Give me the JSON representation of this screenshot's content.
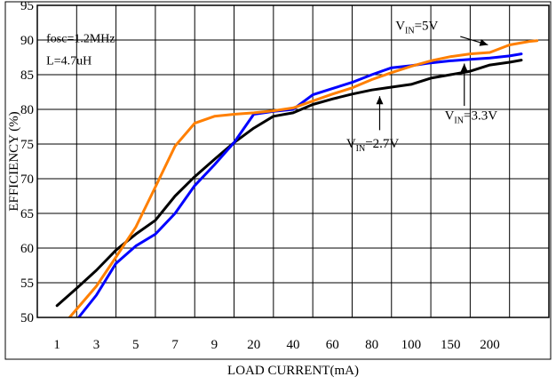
{
  "chart_data": {
    "type": "line",
    "title": "",
    "xlabel": "LOAD CURRENT(mA)",
    "ylabel": "EFFICIENCY (%)",
    "x_ticks": [
      "1",
      "3",
      "5",
      "7",
      "9",
      "20",
      "40",
      "60",
      "80",
      "100",
      "150",
      "200"
    ],
    "ylim": [
      50,
      95
    ],
    "y_ticks": [
      50,
      55,
      60,
      65,
      70,
      75,
      80,
      85,
      90,
      95
    ],
    "grid": true,
    "annotations": {
      "conditions": [
        "fosc=1.2MHz",
        "L=4.7uH"
      ],
      "vin_5v": {
        "main": "V",
        "sub": "IN",
        "tail": "=5V"
      },
      "vin_3v3": {
        "main": "V",
        "sub": "IN",
        "tail": "=3.3V"
      },
      "vin_2v7": {
        "main": "V",
        "sub": "IN",
        "tail": "=2.7V"
      }
    },
    "series": [
      {
        "name": "VIN=2.7V",
        "color": "#000000",
        "points": [
          [
            0,
            51.7
          ],
          [
            0.5,
            54.2
          ],
          [
            1,
            56.8
          ],
          [
            1.5,
            59.7
          ],
          [
            2,
            62
          ],
          [
            2.5,
            64
          ],
          [
            3,
            67.5
          ],
          [
            3.5,
            70.3
          ],
          [
            4,
            72.8
          ],
          [
            4.5,
            75.2
          ],
          [
            5,
            77.3
          ],
          [
            5.5,
            79
          ],
          [
            6,
            79.5
          ],
          [
            6.5,
            80.7
          ],
          [
            7,
            81.5
          ],
          [
            7.5,
            82.2
          ],
          [
            8,
            82.8
          ],
          [
            8.5,
            83.2
          ],
          [
            9,
            83.6
          ],
          [
            9.5,
            84.5
          ],
          [
            10,
            85
          ],
          [
            10.5,
            85.5
          ],
          [
            11,
            86.4
          ],
          [
            11.5,
            86.8
          ],
          [
            11.8,
            87.1
          ]
        ]
      },
      {
        "name": "VIN=3.3V",
        "color": "#0000ff",
        "points": [
          [
            0.55,
            50
          ],
          [
            1,
            53.2
          ],
          [
            1.5,
            57.8
          ],
          [
            2,
            60.3
          ],
          [
            2.5,
            62
          ],
          [
            3,
            65
          ],
          [
            3.5,
            69
          ],
          [
            4,
            72
          ],
          [
            4.5,
            75.2
          ],
          [
            5,
            79.3
          ],
          [
            5.5,
            79.7
          ],
          [
            6,
            80
          ],
          [
            6.5,
            82.1
          ],
          [
            7,
            83
          ],
          [
            7.5,
            83.9
          ],
          [
            8,
            85
          ],
          [
            8.5,
            86
          ],
          [
            9,
            86.3
          ],
          [
            9.5,
            86.7
          ],
          [
            10,
            87
          ],
          [
            10.5,
            87.2
          ],
          [
            11,
            87.4
          ],
          [
            11.5,
            87.7
          ],
          [
            11.8,
            88
          ]
        ]
      },
      {
        "name": "VIN=5V",
        "color": "#ff7f00",
        "points": [
          [
            0.32,
            50
          ],
          [
            1,
            54.5
          ],
          [
            1.5,
            58.7
          ],
          [
            2,
            63
          ],
          [
            2.5,
            68.8
          ],
          [
            3,
            74.7
          ],
          [
            3.5,
            78
          ],
          [
            4,
            79
          ],
          [
            4.5,
            79.3
          ],
          [
            5,
            79.5
          ],
          [
            5.5,
            79.8
          ],
          [
            6,
            80.2
          ],
          [
            6.5,
            81.2
          ],
          [
            7,
            82.2
          ],
          [
            7.5,
            83.1
          ],
          [
            8,
            84.3
          ],
          [
            8.5,
            85.3
          ],
          [
            9,
            86.2
          ],
          [
            9.5,
            87
          ],
          [
            10,
            87.6
          ],
          [
            10.5,
            88
          ],
          [
            11,
            88.2
          ],
          [
            11.5,
            89.3
          ],
          [
            12,
            89.8
          ],
          [
            12.2,
            89.9
          ]
        ]
      }
    ]
  }
}
